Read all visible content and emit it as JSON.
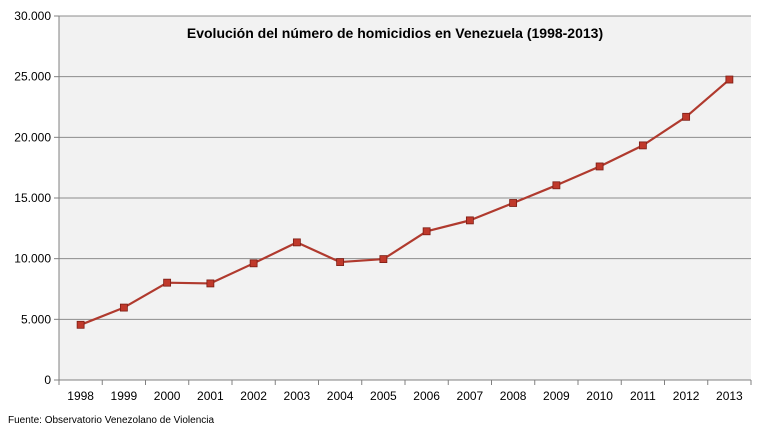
{
  "chart_data": {
    "type": "line",
    "title": "Evolución del número de homicidios en Venezuela (1998-2013)",
    "source": "Fuente: Observatorio Venezolano de Violencia",
    "xlabel": "",
    "ylabel": "",
    "categories": [
      "1998",
      "1999",
      "2000",
      "2001",
      "2002",
      "2003",
      "2004",
      "2005",
      "2006",
      "2007",
      "2008",
      "2009",
      "2010",
      "2011",
      "2012",
      "2013"
    ],
    "series": [
      {
        "values": [
          4550,
          5968,
          8022,
          7960,
          9617,
          11342,
          9719,
          9964,
          12257,
          13156,
          14589,
          16047,
          17600,
          19336,
          21692,
          24763
        ],
        "color": "#b03a2e",
        "marker_color": "#c0392b"
      }
    ],
    "ylim": [
      0,
      30000
    ],
    "yticks": [
      0,
      5000,
      10000,
      15000,
      20000,
      25000,
      30000
    ],
    "ytick_labels": [
      "0",
      "5.000",
      "10.000",
      "15.000",
      "20.000",
      "25.000",
      "30.000"
    ],
    "grid": true,
    "plot_background": "#f2f2f2",
    "grid_color": "#8c8c8c"
  }
}
